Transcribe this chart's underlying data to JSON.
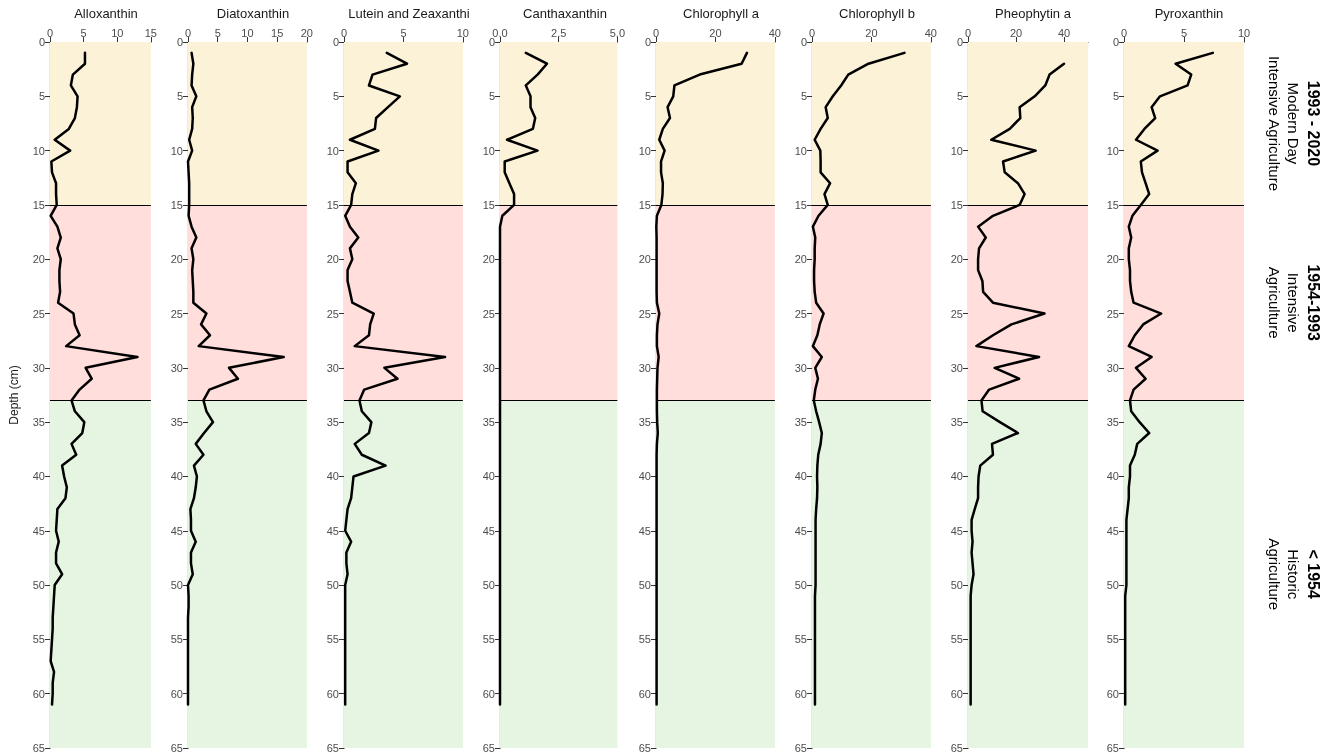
{
  "chart_data": [
    {
      "type": "line",
      "title": "Alloxanthin",
      "ylabel": "Depth (cm)",
      "xlim": [
        0,
        15
      ],
      "xticks": [
        0,
        5,
        10,
        15
      ],
      "ylim": [
        65,
        0
      ],
      "yticks": [
        0,
        5,
        10,
        15,
        20,
        25,
        30,
        35,
        40,
        45,
        50,
        55,
        60,
        65
      ],
      "grid": false,
      "marker": "none",
      "line_style": "solid",
      "bands": [
        {
          "axis": "y",
          "from": 0,
          "to": 15,
          "color": "#fcf2d8"
        },
        {
          "axis": "y",
          "from": 15,
          "to": 33,
          "color": "#ffdedb"
        },
        {
          "axis": "y",
          "from": 33,
          "to": 65,
          "color": "#e6f5e1"
        }
      ],
      "ref_lines": [
        {
          "axis": "y",
          "value": 15,
          "color": "#000000"
        },
        {
          "axis": "y",
          "value": 33,
          "color": "#000000"
        }
      ],
      "series": [
        {
          "color": "#000000",
          "x": [
            5.2,
            5.2,
            3.4,
            3.1,
            4.1,
            4.0,
            3.7,
            2.8,
            0.7,
            3.0,
            0.2,
            0.3,
            0.9,
            0.9,
            1.0,
            0.1,
            1.1,
            1.6,
            1.1,
            1.6,
            1.4,
            1.4,
            1.5,
            1.2,
            3.5,
            3.7,
            4.4,
            2.4,
            13.0,
            5.3,
            6.2,
            4.4,
            3.2,
            3.7,
            5.1,
            4.8,
            3.2,
            3.9,
            1.8,
            2.1,
            2.5,
            2.3,
            1.1,
            1.0,
            0.9,
            1.3,
            0.9,
            0.9,
            1.8,
            0.7,
            0.6,
            0.5,
            0.4,
            0.4,
            0.3,
            0.2,
            0.1,
            0.6,
            0.4,
            0.4,
            0.3
          ],
          "values": [
            1,
            2,
            3,
            4,
            5,
            6,
            7,
            8,
            9,
            10,
            11,
            12,
            13,
            14,
            15,
            16,
            17,
            18,
            19,
            20,
            21,
            22,
            23,
            24,
            25,
            26,
            27,
            28,
            29,
            30,
            31,
            32,
            33,
            34,
            35,
            36,
            37,
            38,
            39,
            40,
            41,
            42,
            43,
            44,
            45,
            46,
            47,
            48,
            49,
            50,
            51,
            52,
            53,
            54,
            55,
            56,
            57,
            58,
            59,
            60,
            61
          ]
        }
      ]
    },
    {
      "type": "line",
      "title": "Diatoxanthin",
      "xlim": [
        0,
        20
      ],
      "xticks": [
        0,
        5,
        10,
        15,
        20
      ],
      "ylim": [
        65,
        0
      ],
      "yticks": [
        0,
        5,
        10,
        15,
        20,
        25,
        30,
        35,
        40,
        45,
        50,
        55,
        60,
        65
      ],
      "grid": false,
      "marker": "none",
      "line_style": "solid",
      "bands": [
        {
          "axis": "y",
          "from": 0,
          "to": 15,
          "color": "#fcf2d8"
        },
        {
          "axis": "y",
          "from": 15,
          "to": 33,
          "color": "#ffdedb"
        },
        {
          "axis": "y",
          "from": 33,
          "to": 65,
          "color": "#e6f5e1"
        }
      ],
      "ref_lines": [
        {
          "axis": "y",
          "value": 15,
          "color": "#000000"
        },
        {
          "axis": "y",
          "value": 33,
          "color": "#000000"
        }
      ],
      "series": [
        {
          "color": "#000000",
          "x": [
            0.6,
            0.9,
            0.7,
            0.6,
            1.4,
            0.7,
            0.8,
            0.7,
            0.2,
            0.7,
            0,
            0.1,
            0.2,
            0.2,
            0.2,
            0.1,
            0.6,
            1.4,
            0.6,
            0.9,
            0.7,
            0.8,
            0.9,
            0.9,
            3.1,
            2.2,
            3.7,
            1.8,
            16.1,
            6.9,
            8.4,
            3.6,
            2.6,
            3.1,
            4.2,
            2.7,
            1.3,
            2.6,
            1.0,
            1.5,
            1.3,
            1.0,
            0.4,
            0.5,
            0.5,
            1.3,
            0.5,
            0.5,
            0.8,
            0,
            0.1,
            0.1,
            0,
            0,
            0,
            0,
            0,
            0,
            0,
            0,
            0
          ],
          "values": [
            1,
            2,
            3,
            4,
            5,
            6,
            7,
            8,
            9,
            10,
            11,
            12,
            13,
            14,
            15,
            16,
            17,
            18,
            19,
            20,
            21,
            22,
            23,
            24,
            25,
            26,
            27,
            28,
            29,
            30,
            31,
            32,
            33,
            34,
            35,
            36,
            37,
            38,
            39,
            40,
            41,
            42,
            43,
            44,
            45,
            46,
            47,
            48,
            49,
            50,
            51,
            52,
            53,
            54,
            55,
            56,
            57,
            58,
            59,
            60,
            61
          ]
        }
      ]
    },
    {
      "type": "line",
      "title": "Lutein and Zeaxanthi",
      "xlim": [
        0,
        10
      ],
      "xticks": [
        0,
        5,
        10
      ],
      "ylim": [
        65,
        0
      ],
      "yticks": [
        0,
        5,
        10,
        15,
        20,
        25,
        30,
        35,
        40,
        45,
        50,
        55,
        60,
        65
      ],
      "grid": false,
      "marker": "none",
      "line_style": "solid",
      "bands": [
        {
          "axis": "y",
          "from": 0,
          "to": 15,
          "color": "#fcf2d8"
        },
        {
          "axis": "y",
          "from": 15,
          "to": 33,
          "color": "#ffdedb"
        },
        {
          "axis": "y",
          "from": 33,
          "to": 65,
          "color": "#e6f5e1"
        }
      ],
      "ref_lines": [
        {
          "axis": "y",
          "value": 15,
          "color": "#000000"
        },
        {
          "axis": "y",
          "value": 33,
          "color": "#000000"
        }
      ],
      "series": [
        {
          "color": "#000000",
          "x": [
            3.6,
            5.3,
            2.4,
            2.1,
            4.7,
            3.7,
            2.7,
            2.6,
            0.5,
            2.9,
            0.3,
            0.3,
            1.0,
            0.7,
            0.6,
            0.1,
            0.5,
            1.2,
            0.5,
            0.7,
            0.3,
            0.3,
            0.5,
            0.7,
            2.5,
            2.2,
            2.1,
            0.9,
            8.5,
            3.4,
            4.5,
            1.7,
            1.3,
            1.5,
            2.3,
            2.1,
            0.9,
            1.5,
            3.5,
            0.8,
            0.7,
            0.6,
            0.3,
            0.2,
            0.1,
            0.6,
            0.2,
            0.2,
            0.3,
            0.1,
            0.1,
            0.1,
            0.1,
            0.1,
            0.1,
            0.1,
            0.1,
            0.1,
            0.1,
            0.1,
            0.1
          ],
          "values": [
            1,
            2,
            3,
            4,
            5,
            6,
            7,
            8,
            9,
            10,
            11,
            12,
            13,
            14,
            15,
            16,
            17,
            18,
            19,
            20,
            21,
            22,
            23,
            24,
            25,
            26,
            27,
            28,
            29,
            30,
            31,
            32,
            33,
            34,
            35,
            36,
            37,
            38,
            39,
            40,
            41,
            42,
            43,
            44,
            45,
            46,
            47,
            48,
            49,
            50,
            51,
            52,
            53,
            54,
            55,
            56,
            57,
            58,
            59,
            60,
            61
          ]
        }
      ]
    },
    {
      "type": "line",
      "title": "Canthaxanthin",
      "xlim": [
        0,
        5
      ],
      "xticks": [
        {
          "value": 0,
          "label": "0.0"
        },
        {
          "value": 2.5,
          "label": "2.5"
        },
        {
          "value": 5,
          "label": "5.0"
        }
      ],
      "ylim": [
        65,
        0
      ],
      "yticks": [
        0,
        5,
        10,
        15,
        20,
        25,
        30,
        35,
        40,
        45,
        50,
        55,
        60,
        65
      ],
      "grid": false,
      "marker": "none",
      "line_style": "solid",
      "bands": [
        {
          "axis": "y",
          "from": 0,
          "to": 15,
          "color": "#fcf2d8"
        },
        {
          "axis": "y",
          "from": 15,
          "to": 33,
          "color": "#ffdedb"
        },
        {
          "axis": "y",
          "from": 33,
          "to": 65,
          "color": "#e6f5e1"
        }
      ],
      "ref_lines": [
        {
          "axis": "y",
          "value": 15,
          "color": "#000000"
        },
        {
          "axis": "y",
          "value": 33,
          "color": "#000000"
        }
      ],
      "series": [
        {
          "color": "#000000",
          "x": [
            1.1,
            2.0,
            1.6,
            1.1,
            1.3,
            1.3,
            1.5,
            1.4,
            0.3,
            1.6,
            0.2,
            0.2,
            0.4,
            0.6,
            0.6,
            0.1,
            0,
            0
          ],
          "values": [
            1,
            2,
            3,
            4,
            5,
            6,
            7,
            8,
            9,
            10,
            11,
            12,
            13,
            14,
            15,
            16,
            17,
            61
          ]
        }
      ]
    },
    {
      "type": "line",
      "title": "Chlorophyll a",
      "xlim": [
        0,
        40
      ],
      "xticks": [
        0,
        20,
        40
      ],
      "ylim": [
        65,
        0
      ],
      "yticks": [
        0,
        5,
        10,
        15,
        20,
        25,
        30,
        35,
        40,
        45,
        50,
        55,
        60,
        65
      ],
      "grid": false,
      "marker": "none",
      "line_style": "solid",
      "bands": [
        {
          "axis": "y",
          "from": 0,
          "to": 15,
          "color": "#fcf2d8"
        },
        {
          "axis": "y",
          "from": 15,
          "to": 33,
          "color": "#ffdedb"
        },
        {
          "axis": "y",
          "from": 33,
          "to": 65,
          "color": "#e6f5e1"
        }
      ],
      "ref_lines": [
        {
          "axis": "y",
          "value": 15,
          "color": "#000000"
        },
        {
          "axis": "y",
          "value": 33,
          "color": "#000000"
        }
      ],
      "series": [
        {
          "color": "#000000",
          "x": [
            30.6,
            28.8,
            14.7,
            6.2,
            5.8,
            3.9,
            4.7,
            2.3,
            1.1,
            2.9,
            1.7,
            1.7,
            2.3,
            2.2,
            1.8,
            0.3,
            0.1,
            0.2,
            0.2,
            0.2,
            0.2,
            0.2,
            0.2,
            0.3,
            1.1,
            0.5,
            0.3,
            0.3,
            0.9,
            0.5,
            0.4,
            0.3,
            0.3,
            0.3,
            0.4,
            0.6,
            0.3,
            0.2,
            0.2,
            0.2,
            0.2,
            0.2,
            0.2,
            0.2,
            0.2,
            0.2,
            0.2,
            0.2,
            0.2,
            0.2,
            0.2,
            0.2,
            0.2,
            0.2,
            0.2,
            0.2,
            0.2,
            0.2,
            0.2,
            0.2,
            0.2
          ],
          "values": [
            1,
            2,
            3,
            4,
            5,
            6,
            7,
            8,
            9,
            10,
            11,
            12,
            13,
            14,
            15,
            16,
            17,
            18,
            19,
            20,
            21,
            22,
            23,
            24,
            25,
            26,
            27,
            28,
            29,
            30,
            31,
            32,
            33,
            34,
            35,
            36,
            37,
            38,
            39,
            40,
            41,
            42,
            43,
            44,
            45,
            46,
            47,
            48,
            49,
            50,
            51,
            52,
            53,
            54,
            55,
            56,
            57,
            58,
            59,
            60,
            61
          ]
        }
      ]
    },
    {
      "type": "line",
      "title": "Chlorophyll b",
      "xlim": [
        0,
        40
      ],
      "xticks": [
        0,
        20,
        40
      ],
      "ylim": [
        65,
        0
      ],
      "yticks": [
        0,
        5,
        10,
        15,
        20,
        25,
        30,
        35,
        40,
        45,
        50,
        55,
        60,
        65
      ],
      "grid": false,
      "marker": "none",
      "line_style": "solid",
      "bands": [
        {
          "axis": "y",
          "from": 0,
          "to": 15,
          "color": "#fcf2d8"
        },
        {
          "axis": "y",
          "from": 15,
          "to": 33,
          "color": "#ffdedb"
        },
        {
          "axis": "y",
          "from": 33,
          "to": 65,
          "color": "#e6f5e1"
        }
      ],
      "ref_lines": [
        {
          "axis": "y",
          "value": 15,
          "color": "#000000"
        },
        {
          "axis": "y",
          "value": 33,
          "color": "#000000"
        }
      ],
      "series": [
        {
          "color": "#000000",
          "x": [
            31.1,
            19.0,
            12.2,
            9.8,
            7.0,
            4.6,
            5.3,
            2.9,
            0.9,
            2.8,
            2.9,
            2.9,
            6.1,
            4.2,
            5.3,
            2.2,
            0.3,
            1.1,
            0.9,
            0.9,
            0.7,
            0.7,
            0.9,
            1.4,
            3.9,
            2.6,
            1.8,
            0.3,
            3.3,
            1.1,
            2.0,
            1.1,
            0.6,
            1.4,
            2.4,
            3.3,
            2.9,
            2.1,
            1.8,
            1.7,
            1.8,
            1.7,
            1.4,
            1.2,
            1.2,
            1.2,
            1.2,
            1.2,
            1.2,
            1.2,
            1.0,
            1.0,
            1.0,
            1.0,
            1.0,
            1.0,
            1.0,
            1.0,
            1.0,
            1.0,
            1.0
          ],
          "values": [
            1,
            2,
            3,
            4,
            5,
            6,
            7,
            8,
            9,
            10,
            11,
            12,
            13,
            14,
            15,
            16,
            17,
            18,
            19,
            20,
            21,
            22,
            23,
            24,
            25,
            26,
            27,
            28,
            29,
            30,
            31,
            32,
            33,
            34,
            35,
            36,
            37,
            38,
            39,
            40,
            41,
            42,
            43,
            44,
            45,
            46,
            47,
            48,
            49,
            50,
            51,
            52,
            53,
            54,
            55,
            56,
            57,
            58,
            59,
            60,
            61
          ]
        }
      ]
    },
    {
      "type": "line",
      "title": "Pheophytin a",
      "xlim": [
        0,
        50
      ],
      "xticks": [
        0,
        20,
        40
      ],
      "ylim": [
        65,
        0
      ],
      "yticks": [
        0,
        5,
        10,
        15,
        20,
        25,
        30,
        35,
        40,
        45,
        50,
        55,
        60,
        65
      ],
      "grid": false,
      "marker": "none",
      "line_style": "solid",
      "bands": [
        {
          "axis": "y",
          "from": 0,
          "to": 15,
          "color": "#fcf2d8"
        },
        {
          "axis": "y",
          "from": 15,
          "to": 33,
          "color": "#ffdedb"
        },
        {
          "axis": "y",
          "from": 33,
          "to": 65,
          "color": "#e6f5e1"
        }
      ],
      "ref_lines": [
        {
          "axis": "y",
          "value": 15,
          "color": "#000000"
        },
        {
          "axis": "y",
          "value": 33,
          "color": "#000000"
        }
      ],
      "series": [
        {
          "color": "#000000",
          "x": [
            40.0,
            34.0,
            32.2,
            27.8,
            21.5,
            21.8,
            17.4,
            9.7,
            28.2,
            14.6,
            15.3,
            20.8,
            23.6,
            21.5,
            10.4,
            4.2,
            7.4,
            4.6,
            4.2,
            4.2,
            6.0,
            6.3,
            10.4,
            31.9,
            18.1,
            10.4,
            3.5,
            29.6,
            11.1,
            21.3,
            8.8,
            5.6,
            6.1,
            13.3,
            20.8,
            10.0,
            10.4,
            5.1,
            4.4,
            4.2,
            4.2,
            2.8,
            1.5,
            1.5,
            1.9,
            1.5,
            1.9,
            2.3,
            1.5,
            1.1,
            1.1,
            1.1,
            1.1,
            1.1,
            1.1,
            1.1,
            1.1,
            1.1,
            1.1,
            1.1
          ],
          "values": [
            2,
            3,
            4,
            5,
            6,
            7,
            8,
            9,
            10,
            11,
            12,
            13,
            14,
            15,
            16,
            17,
            18,
            19,
            20,
            21,
            22,
            23,
            24,
            25,
            26,
            27,
            28,
            29,
            30,
            31,
            32,
            33,
            34,
            35,
            36,
            37,
            38,
            39,
            40,
            41,
            42,
            43,
            44,
            45,
            46,
            47,
            48,
            49,
            50,
            51,
            52,
            53,
            54,
            55,
            56,
            57,
            58,
            59,
            60,
            61
          ]
        }
      ]
    },
    {
      "type": "line",
      "title": "Pyroxanthin",
      "xlim": [
        0,
        10
      ],
      "xticks": [
        0,
        5,
        10
      ],
      "ylim": [
        65,
        0
      ],
      "yticks": [
        0,
        5,
        10,
        15,
        20,
        25,
        30,
        35,
        40,
        45,
        50,
        55,
        60,
        65
      ],
      "grid": false,
      "marker": "none",
      "line_style": "solid",
      "bands": [
        {
          "axis": "y",
          "from": 0,
          "to": 15,
          "color": "#fcf2d8",
          "label": "1993 - 2020\nModern Day\nIntensive Agriculture"
        },
        {
          "axis": "y",
          "from": 15,
          "to": 33,
          "color": "#ffdedb",
          "label": "1954-1993\nIntensive\nAgriculture"
        },
        {
          "axis": "y",
          "from": 33,
          "to": 65,
          "color": "#e6f5e1",
          "label": "< 1954\nHistoric\nAgriculture"
        }
      ],
      "ref_lines": [
        {
          "axis": "y",
          "value": 15,
          "color": "#000000"
        },
        {
          "axis": "y",
          "value": 33,
          "color": "#000000"
        }
      ],
      "series": [
        {
          "color": "#000000",
          "x": [
            7.4,
            4.3,
            5.6,
            5.3,
            3.0,
            2.3,
            2.6,
            1.7,
            1.0,
            2.8,
            1.4,
            1.5,
            1.8,
            2.1,
            1.4,
            0.7,
            0.4,
            0.6,
            0.4,
            0.4,
            0.5,
            0.5,
            0.6,
            0.8,
            3.1,
            1.6,
            0.9,
            0.4,
            2.3,
            1.0,
            1.8,
            0.8,
            0.5,
            0.6,
            1.3,
            2.1,
            1.1,
            0.9,
            0.5,
            0.5,
            0.4,
            0.4,
            0.3,
            0.2,
            0.2,
            0.2,
            0.2,
            0.2,
            0.2,
            0.2,
            0.1,
            0.1,
            0.1,
            0.1,
            0.1,
            0.1,
            0.1,
            0.1,
            0.1,
            0.1,
            0.1
          ],
          "values": [
            1,
            2,
            3,
            4,
            5,
            6,
            7,
            8,
            9,
            10,
            11,
            12,
            13,
            14,
            15,
            16,
            17,
            18,
            19,
            20,
            21,
            22,
            23,
            24,
            25,
            26,
            27,
            28,
            29,
            30,
            31,
            32,
            33,
            34,
            35,
            36,
            37,
            38,
            39,
            40,
            41,
            42,
            43,
            44,
            45,
            46,
            47,
            48,
            49,
            50,
            51,
            52,
            53,
            54,
            55,
            56,
            57,
            58,
            59,
            60,
            61
          ]
        }
      ]
    }
  ]
}
